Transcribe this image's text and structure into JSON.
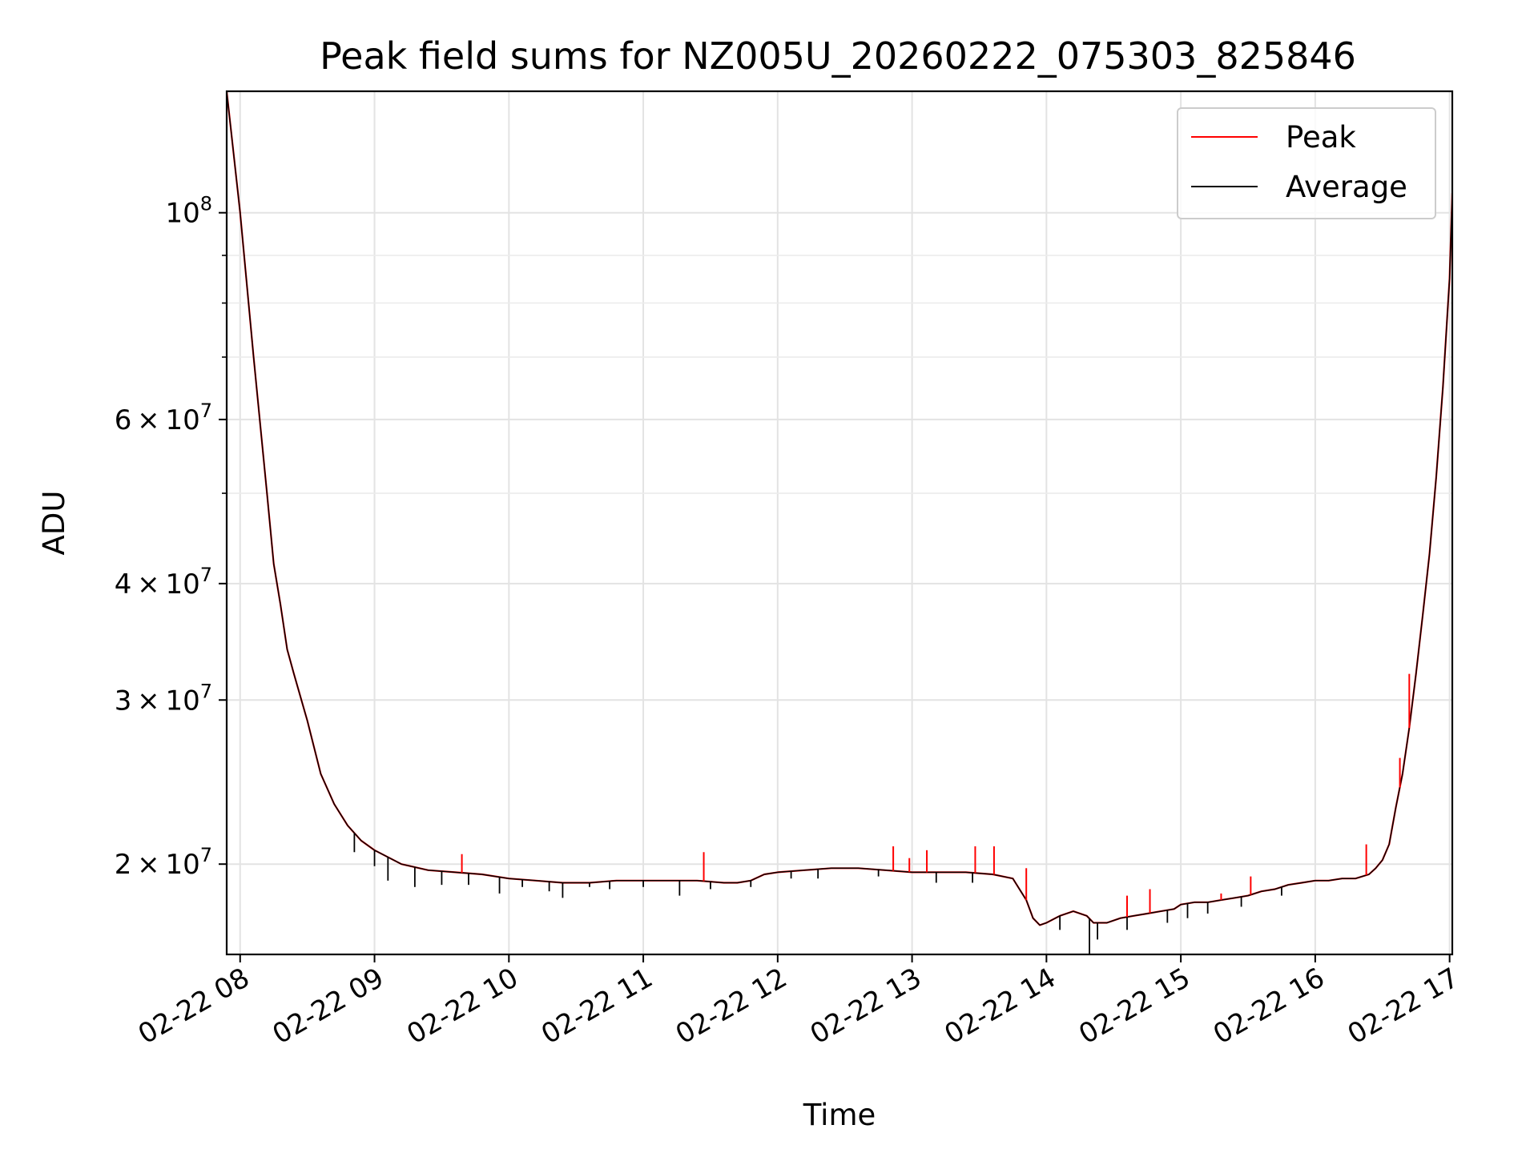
{
  "chart_data": {
    "type": "line",
    "title": "Peak field sums for NZ005U_20260222_075303_825846",
    "xlabel": "Time",
    "ylabel": "ADU",
    "yscale": "log",
    "xlim_hours": [
      7.9,
      17.02
    ],
    "ylim": [
      16000000,
      135000000
    ],
    "grid": true,
    "legend_position": "top-right",
    "x_ticks": [
      {
        "hour": 8,
        "label": "02-22 08"
      },
      {
        "hour": 9,
        "label": "02-22 09"
      },
      {
        "hour": 10,
        "label": "02-22 10"
      },
      {
        "hour": 11,
        "label": "02-22 11"
      },
      {
        "hour": 12,
        "label": "02-22 12"
      },
      {
        "hour": 13,
        "label": "02-22 13"
      },
      {
        "hour": 14,
        "label": "02-22 14"
      },
      {
        "hour": 15,
        "label": "02-22 15"
      },
      {
        "hour": 16,
        "label": "02-22 16"
      },
      {
        "hour": 17,
        "label": "02-22 17"
      }
    ],
    "y_major_ticks": [
      {
        "value": 20000000,
        "mantissa": "2",
        "base": "10",
        "exponent": "7"
      },
      {
        "value": 30000000,
        "mantissa": "3",
        "base": "10",
        "exponent": "7"
      },
      {
        "value": 40000000,
        "mantissa": "4",
        "base": "10",
        "exponent": "7"
      },
      {
        "value": 60000000,
        "mantissa": "6",
        "base": "10",
        "exponent": "7"
      },
      {
        "value": 100000000,
        "mantissa": "",
        "base": "10",
        "exponent": "8"
      }
    ],
    "y_minor_ticks": [
      50000000,
      70000000,
      80000000,
      90000000
    ],
    "series": [
      {
        "name": "Peak",
        "color": "#ff0000",
        "x_hours": [
          7.9,
          8.0,
          8.1,
          8.2,
          8.25,
          8.3,
          8.35,
          8.4,
          8.5,
          8.6,
          8.7,
          8.8,
          8.9,
          9.0,
          9.2,
          9.4,
          9.6,
          9.8,
          10.0,
          10.2,
          10.4,
          10.6,
          10.8,
          11.0,
          11.2,
          11.4,
          11.6,
          11.7,
          11.8,
          11.9,
          12.0,
          12.2,
          12.4,
          12.6,
          12.8,
          13.0,
          13.2,
          13.4,
          13.6,
          13.75,
          13.85,
          13.9,
          13.95,
          14.0,
          14.1,
          14.2,
          14.3,
          14.35,
          14.45,
          14.55,
          14.65,
          14.75,
          14.85,
          14.95,
          15.0,
          15.1,
          15.2,
          15.3,
          15.4,
          15.5,
          15.6,
          15.7,
          15.8,
          15.9,
          16.0,
          16.1,
          16.2,
          16.3,
          16.4,
          16.45,
          16.5,
          16.55,
          16.6,
          16.65,
          16.7,
          16.75,
          16.8,
          16.85,
          16.9,
          16.95,
          17.0,
          17.02
        ],
        "values": [
          135000000,
          100000000,
          70000000,
          50000000,
          42000000,
          38000000,
          34000000,
          32000000,
          28500000,
          25000000,
          23200000,
          22000000,
          21200000,
          20700000,
          20000000,
          19700000,
          19600000,
          19500000,
          19300000,
          19200000,
          19100000,
          19100000,
          19200000,
          19200000,
          19200000,
          19200000,
          19100000,
          19100000,
          19200000,
          19500000,
          19600000,
          19700000,
          19800000,
          19800000,
          19700000,
          19600000,
          19600000,
          19600000,
          19500000,
          19300000,
          18300000,
          17500000,
          17200000,
          17300000,
          17600000,
          17800000,
          17600000,
          17300000,
          17300000,
          17500000,
          17600000,
          17700000,
          17800000,
          17900000,
          18100000,
          18200000,
          18200000,
          18300000,
          18400000,
          18500000,
          18700000,
          18800000,
          19000000,
          19100000,
          19200000,
          19200000,
          19300000,
          19300000,
          19500000,
          19800000,
          20200000,
          21000000,
          23000000,
          25000000,
          28000000,
          32000000,
          37000000,
          43000000,
          52000000,
          65000000,
          85000000,
          105000000
        ]
      },
      {
        "name": "Average",
        "color": "#000000",
        "x_hours": [
          7.9,
          8.0,
          8.1,
          8.2,
          8.25,
          8.3,
          8.35,
          8.4,
          8.5,
          8.6,
          8.7,
          8.8,
          8.9,
          9.0,
          9.2,
          9.4,
          9.6,
          9.8,
          10.0,
          10.2,
          10.4,
          10.6,
          10.8,
          11.0,
          11.2,
          11.4,
          11.6,
          11.7,
          11.8,
          11.9,
          12.0,
          12.2,
          12.4,
          12.6,
          12.8,
          13.0,
          13.2,
          13.4,
          13.6,
          13.75,
          13.85,
          13.9,
          13.95,
          14.0,
          14.1,
          14.2,
          14.3,
          14.35,
          14.45,
          14.55,
          14.65,
          14.75,
          14.85,
          14.95,
          15.0,
          15.1,
          15.2,
          15.3,
          15.4,
          15.5,
          15.6,
          15.7,
          15.8,
          15.9,
          16.0,
          16.1,
          16.2,
          16.3,
          16.4,
          16.45,
          16.5,
          16.55,
          16.6,
          16.65,
          16.7,
          16.75,
          16.8,
          16.85,
          16.9,
          16.95,
          17.0,
          17.02
        ],
        "values": [
          135000000,
          100000000,
          70000000,
          50000000,
          42000000,
          38000000,
          34000000,
          32000000,
          28500000,
          25000000,
          23200000,
          22000000,
          21200000,
          20700000,
          20000000,
          19700000,
          19600000,
          19500000,
          19300000,
          19200000,
          19100000,
          19100000,
          19200000,
          19200000,
          19200000,
          19200000,
          19100000,
          19100000,
          19200000,
          19500000,
          19600000,
          19700000,
          19800000,
          19800000,
          19700000,
          19600000,
          19600000,
          19600000,
          19500000,
          19300000,
          18300000,
          17500000,
          17200000,
          17300000,
          17600000,
          17800000,
          17600000,
          17300000,
          17300000,
          17500000,
          17600000,
          17700000,
          17800000,
          17900000,
          18100000,
          18200000,
          18200000,
          18300000,
          18400000,
          18500000,
          18700000,
          18800000,
          19000000,
          19100000,
          19200000,
          19200000,
          19300000,
          19300000,
          19500000,
          19800000,
          20200000,
          21000000,
          23000000,
          25000000,
          28000000,
          32000000,
          37000000,
          43000000,
          52000000,
          65000000,
          85000000,
          105000000
        ]
      }
    ],
    "peak_spikes": [
      {
        "hour": 9.65,
        "value": 20500000
      },
      {
        "hour": 11.45,
        "value": 20600000
      },
      {
        "hour": 12.86,
        "value": 20900000
      },
      {
        "hour": 12.98,
        "value": 20300000
      },
      {
        "hour": 13.11,
        "value": 20700000
      },
      {
        "hour": 13.47,
        "value": 20900000
      },
      {
        "hour": 13.61,
        "value": 20900000
      },
      {
        "hour": 13.85,
        "value": 19800000
      },
      {
        "hour": 14.6,
        "value": 18500000
      },
      {
        "hour": 14.77,
        "value": 18800000
      },
      {
        "hour": 15.3,
        "value": 18600000
      },
      {
        "hour": 15.52,
        "value": 19400000
      },
      {
        "hour": 16.38,
        "value": 21000000
      },
      {
        "hour": 16.63,
        "value": 26000000
      },
      {
        "hour": 16.7,
        "value": 32000000
      }
    ],
    "average_dips": [
      {
        "hour": 8.85,
        "value": 20600000
      },
      {
        "hour": 9.0,
        "value": 19900000
      },
      {
        "hour": 9.1,
        "value": 19200000
      },
      {
        "hour": 9.3,
        "value": 18900000
      },
      {
        "hour": 9.5,
        "value": 19000000
      },
      {
        "hour": 9.7,
        "value": 19000000
      },
      {
        "hour": 9.93,
        "value": 18600000
      },
      {
        "hour": 10.1,
        "value": 18900000
      },
      {
        "hour": 10.3,
        "value": 18700000
      },
      {
        "hour": 10.4,
        "value": 18400000
      },
      {
        "hour": 10.6,
        "value": 18900000
      },
      {
        "hour": 10.75,
        "value": 18800000
      },
      {
        "hour": 11.0,
        "value": 18900000
      },
      {
        "hour": 11.27,
        "value": 18500000
      },
      {
        "hour": 11.5,
        "value": 18800000
      },
      {
        "hour": 11.8,
        "value": 18900000
      },
      {
        "hour": 12.1,
        "value": 19300000
      },
      {
        "hour": 12.3,
        "value": 19300000
      },
      {
        "hour": 12.75,
        "value": 19400000
      },
      {
        "hour": 13.18,
        "value": 19100000
      },
      {
        "hour": 13.45,
        "value": 19100000
      },
      {
        "hour": 14.1,
        "value": 17000000
      },
      {
        "hour": 14.32,
        "value": 16000000
      },
      {
        "hour": 14.38,
        "value": 16600000
      },
      {
        "hour": 14.6,
        "value": 17000000
      },
      {
        "hour": 14.9,
        "value": 17300000
      },
      {
        "hour": 15.05,
        "value": 17500000
      },
      {
        "hour": 15.2,
        "value": 17700000
      },
      {
        "hour": 15.45,
        "value": 18000000
      },
      {
        "hour": 15.75,
        "value": 18500000
      }
    ]
  }
}
